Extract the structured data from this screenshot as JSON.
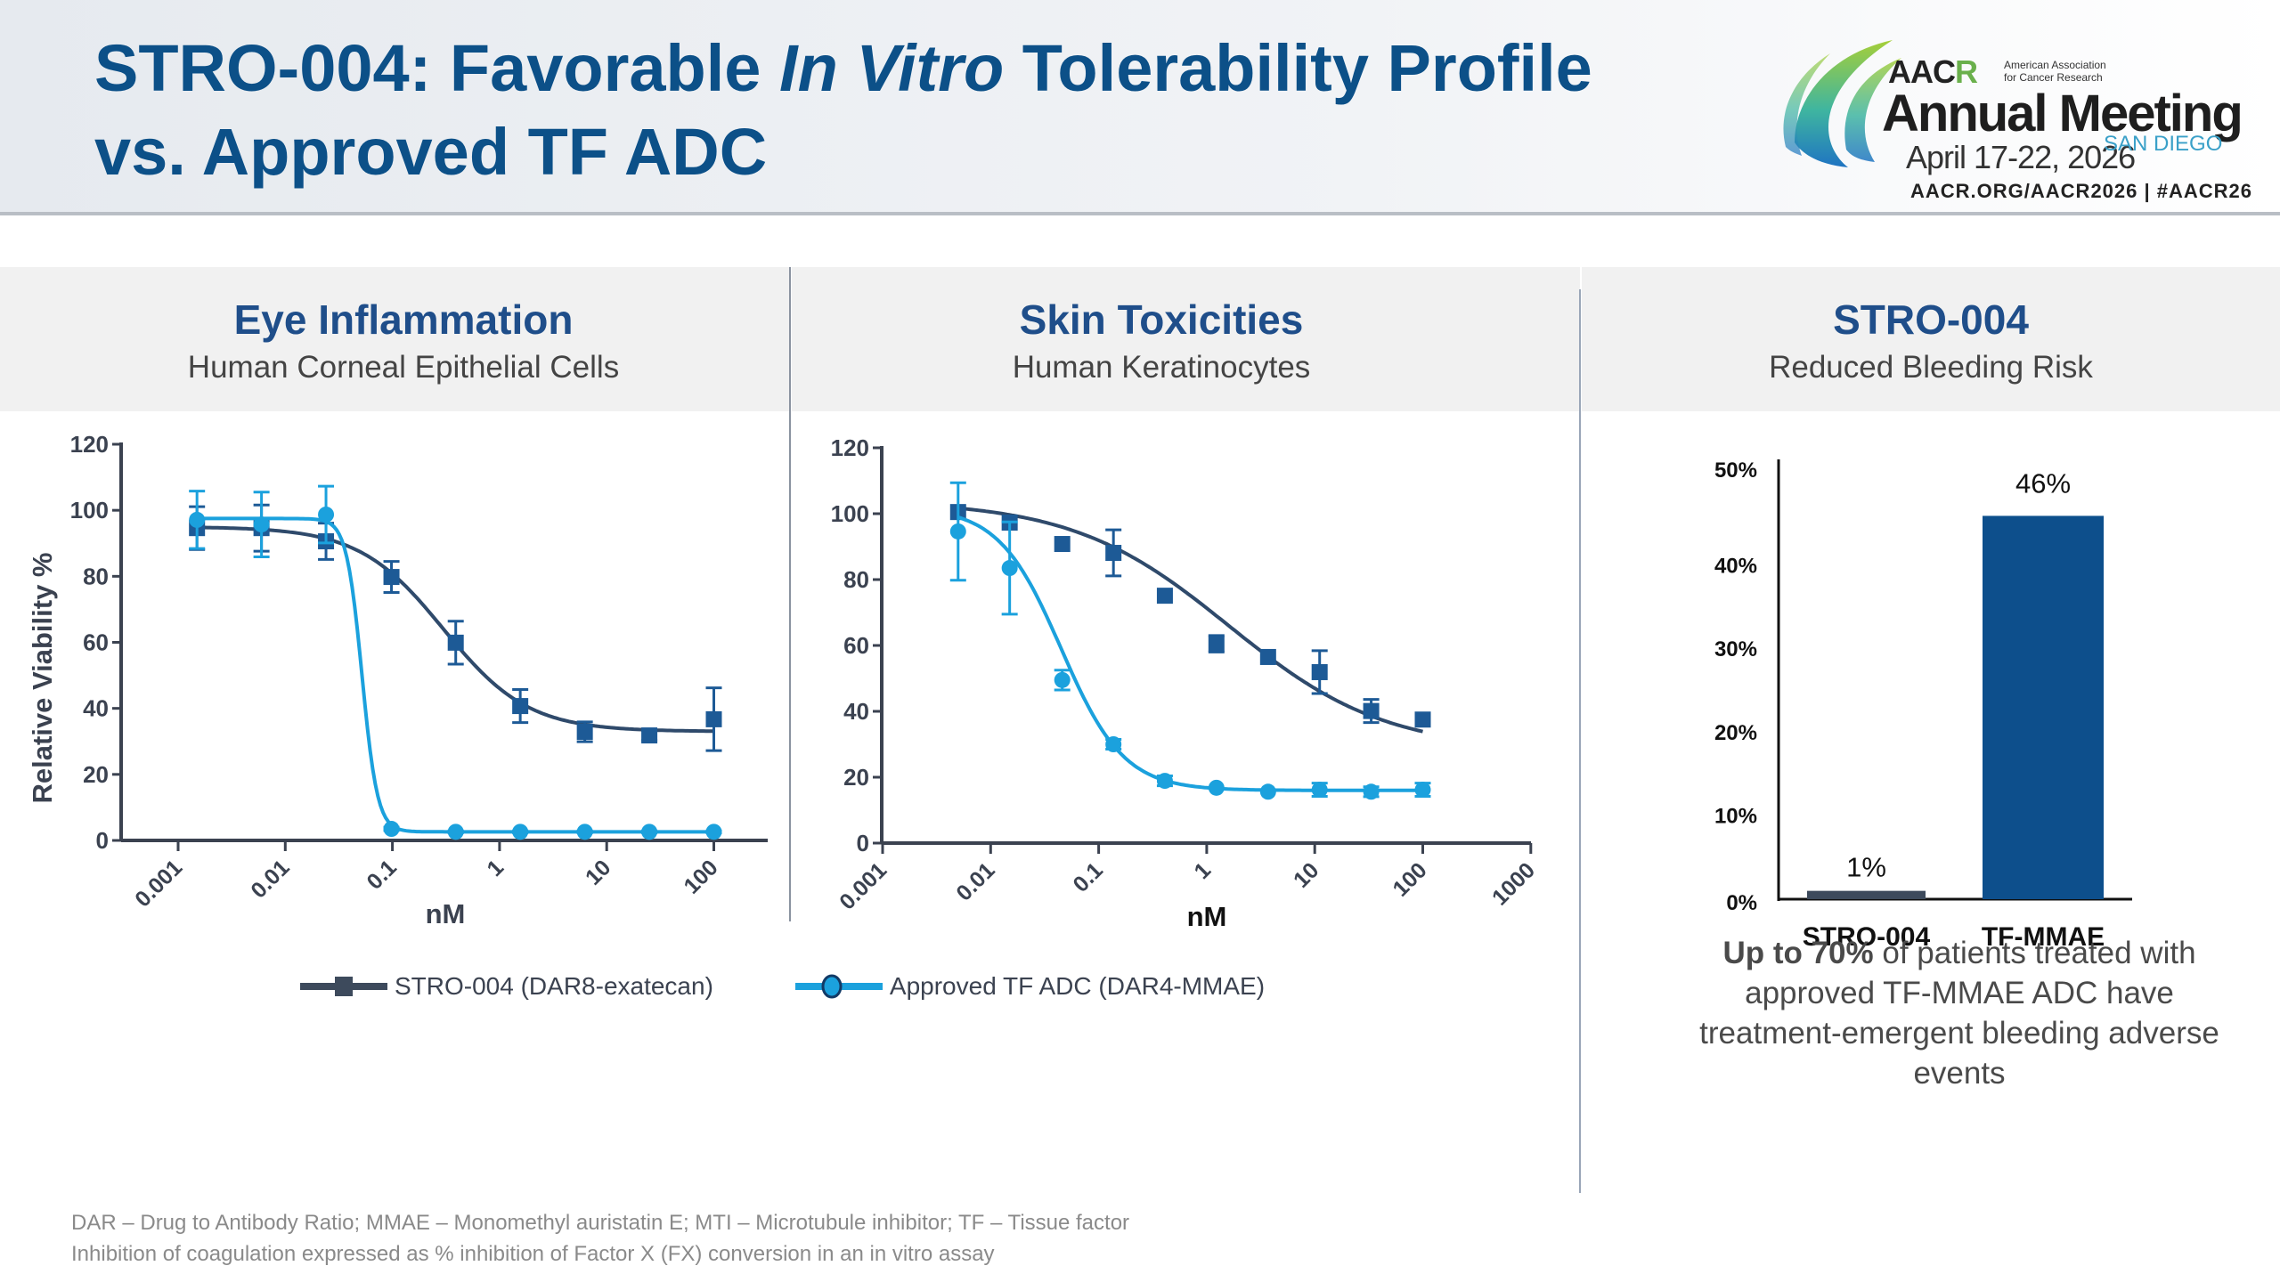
{
  "header": {
    "title_line1_a": "STRO-004: Favorable ",
    "title_line1_italic": "In Vitro",
    "title_line1_b": " Tolerability Profile",
    "title_line2": "vs. Approved TF ADC"
  },
  "logo": {
    "org_abbrev_a": "AAC",
    "org_abbrev_b": "R",
    "org_name_line1": "American Association",
    "org_name_line2": "for Cancer Research",
    "event": "Annual Meeting",
    "dates": "April 17-22, 2026",
    "city": "SAN DIEGO",
    "url": "AACR.ORG/AACR2026  |  #AACR26"
  },
  "colors": {
    "title": "#0c5088",
    "panel_title": "#1f4e8a",
    "stro004_series": "#2f4a6b",
    "stro004_marker": "#1d5a96",
    "tf_adc_series": "#1ba1dd",
    "bar_stro004": "#3d4a5c",
    "bar_tf_mmae": "#0d4f8c",
    "axis": "#3b4250"
  },
  "panels": [
    {
      "title": "Eye Inflammation",
      "subtitle": "Human Corneal Epithelial Cells"
    },
    {
      "title": "Skin Toxicities",
      "subtitle": "Human Keratinocytes"
    },
    {
      "title": "STRO-004",
      "subtitle": "Reduced Bleeding Risk"
    }
  ],
  "legend": [
    {
      "label": "STRO-004 (DAR8-exatecan)",
      "marker": "square"
    },
    {
      "label": "Approved TF ADC (DAR4-MMAE)",
      "marker": "circle"
    }
  ],
  "callout": {
    "bold": "Up to 70%",
    "rest": " of patients treated with approved TF-MMAE ADC have treatment-emergent bleeding adverse events"
  },
  "footnotes": [
    "DAR – Drug to Antibody Ratio; MMAE – Monomethyl auristatin E; MTI – Microtubule inhibitor; TF – Tissue factor",
    "Inhibition of coagulation expressed as % inhibition of Factor X (FX) conversion in an in vitro assay"
  ],
  "chart_data": [
    {
      "type": "line",
      "title": "Eye Inflammation",
      "subtitle": "Human Corneal Epithelial Cells",
      "xlabel": "nM",
      "ylabel": "Relative Viability %",
      "xscale": "log",
      "xlim": [
        0.001,
        100
      ],
      "xticks": [
        "0.001",
        "0.01",
        "0.1",
        "1",
        "10",
        "100"
      ],
      "xtick_values": [
        0.001,
        0.01,
        0.1,
        1,
        10,
        100
      ],
      "ylim": [
        0,
        120
      ],
      "yticks": [
        0,
        20,
        40,
        60,
        80,
        100,
        120
      ],
      "grid": false,
      "series": [
        {
          "name": "STRO-004 (DAR8-exatecan)",
          "marker": "square",
          "x": [
            0.0015,
            0.006,
            0.024,
            0.098,
            0.39,
            1.56,
            6.25,
            25,
            100
          ],
          "y": [
            94.6,
            94.6,
            90.6,
            79.8,
            59.9,
            40.7,
            32.9,
            31.8,
            36.7
          ],
          "err": [
            6.5,
            7,
            5.5,
            4.7,
            6.5,
            5,
            3,
            1.5,
            9.5
          ],
          "fit": {
            "top": 95,
            "bottom": 33,
            "ic50": 0.3,
            "hill": 1.1
          }
        },
        {
          "name": "Approved TF ADC (DAR4-MMAE)",
          "marker": "circle",
          "x": [
            0.0015,
            0.006,
            0.024,
            0.098,
            0.39,
            1.56,
            6.25,
            25,
            100
          ],
          "y": [
            97.1,
            95.7,
            98.7,
            3.5,
            2.6,
            2.6,
            2.6,
            2.6,
            2.6
          ],
          "err": [
            8.7,
            9.8,
            8.6,
            0.5,
            0.3,
            0.3,
            0.3,
            0.3,
            0.3
          ],
          "fit": {
            "top": 97.5,
            "bottom": 2.6,
            "ic50": 0.052,
            "hill": 6
          }
        }
      ]
    },
    {
      "type": "line",
      "title": "Skin Toxicities",
      "subtitle": "Human Keratinocytes",
      "xlabel": "nM",
      "ylabel": "",
      "xscale": "log",
      "xlim": [
        0.001,
        1000
      ],
      "xticks": [
        "0.001",
        "0.01",
        "0.1",
        "1",
        "10",
        "100",
        "1000"
      ],
      "xtick_values": [
        0.001,
        0.01,
        0.1,
        1,
        10,
        100,
        1000
      ],
      "ylim": [
        0,
        120
      ],
      "yticks": [
        0,
        20,
        40,
        60,
        80,
        100,
        120
      ],
      "grid": false,
      "series": [
        {
          "name": "STRO-004 (DAR8-exatecan)",
          "marker": "square",
          "x": [
            0.005,
            0.015,
            0.046,
            0.137,
            0.41,
            1.23,
            3.7,
            11.1,
            33.3,
            100
          ],
          "y": [
            100.5,
            97.3,
            90.8,
            88.1,
            75.1,
            60.5,
            56.5,
            51.9,
            40.1,
            37.5
          ],
          "err": [
            0,
            0,
            0,
            7,
            0,
            2.5,
            0,
            6.5,
            3.5,
            0
          ],
          "fit": {
            "top": 104,
            "bottom": 28,
            "ic50": 1.6,
            "hill": 0.6
          }
        },
        {
          "name": "Approved TF ADC (DAR4-MMAE)",
          "marker": "circle",
          "x": [
            0.005,
            0.015,
            0.046,
            0.137,
            0.41,
            1.23,
            3.7,
            11.1,
            33.3,
            100
          ],
          "y": [
            94.6,
            83.5,
            49.5,
            30,
            18.9,
            16.8,
            15.6,
            16.2,
            15.6,
            16.2
          ],
          "err": [
            14.8,
            14,
            3,
            1.5,
            1.5,
            0,
            0,
            2,
            1.5,
            2
          ],
          "fit": {
            "top": 102,
            "bottom": 16,
            "ic50": 0.045,
            "hill": 1.5
          }
        }
      ]
    },
    {
      "type": "bar",
      "title": "STRO-004",
      "subtitle": "Reduced Bleeding Risk",
      "categories": [
        "STRO-004",
        "TF-MMAE"
      ],
      "values": [
        1,
        46
      ],
      "data_labels": [
        "1%",
        "46%"
      ],
      "ylim": [
        0,
        50
      ],
      "yticks": [
        "0%",
        "10%",
        "20%",
        "30%",
        "40%",
        "50%"
      ],
      "ytick_values": [
        0,
        10,
        20,
        30,
        40,
        50
      ],
      "grid": false
    }
  ]
}
